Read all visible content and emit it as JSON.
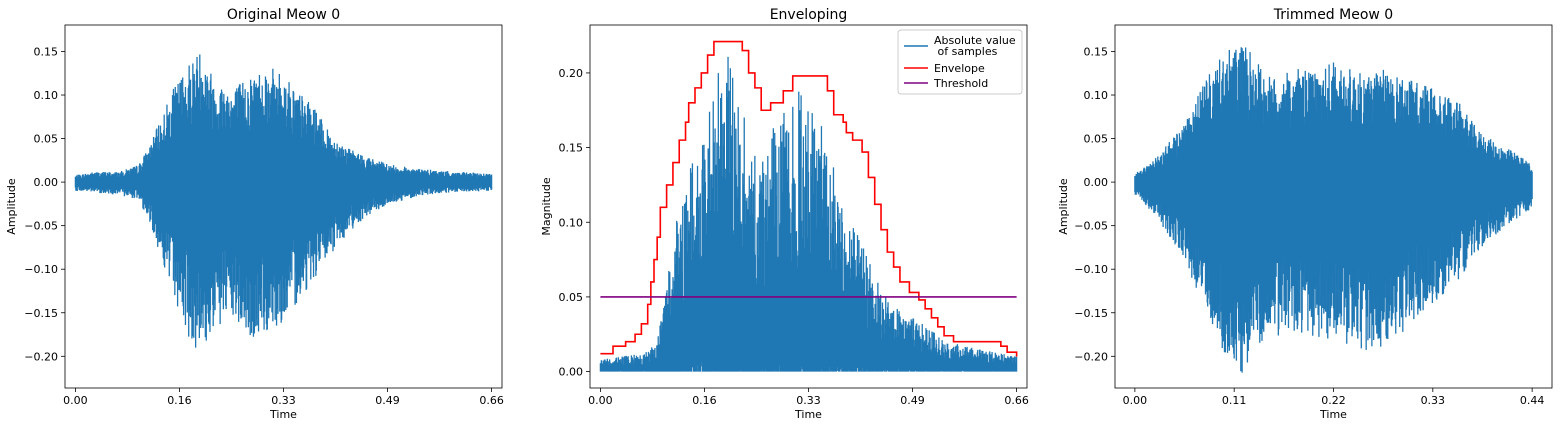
{
  "chart_data": [
    {
      "type": "line",
      "title": "Original Meow 0",
      "xlabel": "Time",
      "ylabel": "Amplitude",
      "xlim": [
        -0.0165,
        0.6765
      ],
      "ylim": [
        -0.2364,
        0.1804
      ],
      "xticks": [
        {
          "v": 0.0,
          "label": "0.00"
        },
        {
          "v": 0.165,
          "label": "0.16"
        },
        {
          "v": 0.33,
          "label": "0.33"
        },
        {
          "v": 0.495,
          "label": "0.49"
        },
        {
          "v": 0.66,
          "label": "0.66"
        }
      ],
      "yticks": [
        {
          "v": 0.15,
          "label": "0.15"
        },
        {
          "v": 0.1,
          "label": "0.10"
        },
        {
          "v": 0.05,
          "label": "0.05"
        },
        {
          "v": 0.0,
          "label": "0.00"
        },
        {
          "v": -0.05,
          "label": "−0.05"
        },
        {
          "v": -0.1,
          "label": "−0.10"
        },
        {
          "v": -0.15,
          "label": "−0.15"
        },
        {
          "v": -0.2,
          "label": "−0.20"
        }
      ],
      "series": [
        {
          "color": "#1f77b4",
          "envelope": {
            "t": [
              0.0,
              0.03,
              0.07,
              0.1,
              0.12,
              0.15,
              0.18,
              0.2,
              0.22,
              0.25,
              0.28,
              0.3,
              0.33,
              0.36,
              0.38,
              0.4,
              0.43,
              0.46,
              0.5,
              0.55,
              0.6,
              0.66
            ],
            "upper": [
              0.008,
              0.012,
              0.012,
              0.02,
              0.045,
              0.1,
              0.14,
              0.155,
              0.12,
              0.11,
              0.125,
              0.135,
              0.125,
              0.1,
              0.085,
              0.06,
              0.04,
              0.03,
              0.02,
              0.015,
              0.012,
              0.01
            ],
            "lower": [
              -0.01,
              -0.012,
              -0.015,
              -0.02,
              -0.05,
              -0.12,
              -0.18,
              -0.2,
              -0.17,
              -0.16,
              -0.185,
              -0.175,
              -0.16,
              -0.13,
              -0.11,
              -0.09,
              -0.06,
              -0.04,
              -0.025,
              -0.015,
              -0.012,
              -0.01
            ]
          }
        }
      ]
    },
    {
      "type": "line",
      "title": "Enveloping",
      "xlabel": "Time",
      "ylabel": "Magnitude",
      "xlim": [
        -0.0165,
        0.6765
      ],
      "ylim": [
        -0.011,
        0.2321
      ],
      "xticks": [
        {
          "v": 0.0,
          "label": "0.00"
        },
        {
          "v": 0.165,
          "label": "0.16"
        },
        {
          "v": 0.33,
          "label": "0.33"
        },
        {
          "v": 0.495,
          "label": "0.49"
        },
        {
          "v": 0.66,
          "label": "0.66"
        }
      ],
      "yticks": [
        {
          "v": 0.2,
          "label": "0.20"
        },
        {
          "v": 0.15,
          "label": "0.15"
        },
        {
          "v": 0.1,
          "label": "0.10"
        },
        {
          "v": 0.05,
          "label": "0.05"
        },
        {
          "v": 0.0,
          "label": "0.00"
        }
      ],
      "legend": {
        "position": "top-right",
        "entries": [
          {
            "label": "Absolute value",
            "label2": " of samples",
            "color": "#1f77b4"
          },
          {
            "label": "Envelope",
            "color": "#ff0000"
          },
          {
            "label": "Threshold",
            "color": "#800080"
          }
        ]
      },
      "series": [
        {
          "name": "Absolute value of samples",
          "color": "#1f77b4",
          "envelope": {
            "t": [
              0.0,
              0.03,
              0.07,
              0.09,
              0.1,
              0.12,
              0.15,
              0.17,
              0.19,
              0.2,
              0.22,
              0.24,
              0.26,
              0.28,
              0.3,
              0.31,
              0.33,
              0.35,
              0.38,
              0.4,
              0.43,
              0.46,
              0.5,
              0.55,
              0.6,
              0.66
            ],
            "upper": [
              0.008,
              0.01,
              0.012,
              0.02,
              0.045,
              0.1,
              0.15,
              0.175,
              0.21,
              0.215,
              0.18,
              0.16,
              0.15,
              0.17,
              0.18,
              0.19,
              0.185,
              0.165,
              0.13,
              0.1,
              0.07,
              0.045,
              0.035,
              0.02,
              0.015,
              0.01
            ]
          }
        },
        {
          "name": "Envelope",
          "color": "#ff0000",
          "points": [
            [
              0.0,
              0.012
            ],
            [
              0.02,
              0.017
            ],
            [
              0.04,
              0.02
            ],
            [
              0.055,
              0.025
            ],
            [
              0.065,
              0.032
            ],
            [
              0.075,
              0.045
            ],
            [
              0.08,
              0.06
            ],
            [
              0.085,
              0.075
            ],
            [
              0.09,
              0.09
            ],
            [
              0.095,
              0.11
            ],
            [
              0.105,
              0.125
            ],
            [
              0.115,
              0.14
            ],
            [
              0.125,
              0.155
            ],
            [
              0.135,
              0.167
            ],
            [
              0.14,
              0.18
            ],
            [
              0.15,
              0.19
            ],
            [
              0.16,
              0.2
            ],
            [
              0.17,
              0.212
            ],
            [
              0.18,
              0.221
            ],
            [
              0.215,
              0.221
            ],
            [
              0.225,
              0.215
            ],
            [
              0.235,
              0.2
            ],
            [
              0.245,
              0.19
            ],
            [
              0.255,
              0.175
            ],
            [
              0.27,
              0.18
            ],
            [
              0.29,
              0.188
            ],
            [
              0.305,
              0.198
            ],
            [
              0.355,
              0.198
            ],
            [
              0.36,
              0.188
            ],
            [
              0.37,
              0.172
            ],
            [
              0.385,
              0.167
            ],
            [
              0.39,
              0.16
            ],
            [
              0.4,
              0.155
            ],
            [
              0.415,
              0.147
            ],
            [
              0.425,
              0.13
            ],
            [
              0.435,
              0.112
            ],
            [
              0.445,
              0.095
            ],
            [
              0.455,
              0.08
            ],
            [
              0.465,
              0.07
            ],
            [
              0.475,
              0.06
            ],
            [
              0.49,
              0.053
            ],
            [
              0.505,
              0.048
            ],
            [
              0.515,
              0.042
            ],
            [
              0.525,
              0.036
            ],
            [
              0.535,
              0.03
            ],
            [
              0.545,
              0.024
            ],
            [
              0.56,
              0.02
            ],
            [
              0.62,
              0.02
            ],
            [
              0.635,
              0.017
            ],
            [
              0.645,
              0.013
            ],
            [
              0.66,
              0.01
            ]
          ]
        },
        {
          "name": "Threshold",
          "color": "#800080",
          "points": [
            [
              0.0,
              0.05
            ],
            [
              0.66,
              0.05
            ]
          ]
        }
      ]
    },
    {
      "type": "line",
      "title": "Trimmed Meow 0",
      "xlabel": "Time",
      "ylabel": "Amplitude",
      "xlim": [
        -0.022,
        0.462
      ],
      "ylim": [
        -0.2364,
        0.1804
      ],
      "xticks": [
        {
          "v": 0.0,
          "label": "0.00"
        },
        {
          "v": 0.11,
          "label": "0.11"
        },
        {
          "v": 0.22,
          "label": "0.22"
        },
        {
          "v": 0.33,
          "label": "0.33"
        },
        {
          "v": 0.44,
          "label": "0.44"
        }
      ],
      "yticks": [
        {
          "v": 0.15,
          "label": "0.15"
        },
        {
          "v": 0.1,
          "label": "0.10"
        },
        {
          "v": 0.05,
          "label": "0.05"
        },
        {
          "v": 0.0,
          "label": "0.00"
        },
        {
          "v": -0.05,
          "label": "−0.05"
        },
        {
          "v": -0.1,
          "label": "−0.10"
        },
        {
          "v": -0.15,
          "label": "−0.15"
        },
        {
          "v": -0.2,
          "label": "−0.20"
        }
      ],
      "series": [
        {
          "color": "#1f77b4",
          "envelope": {
            "t": [
              0.0,
              0.02,
              0.05,
              0.08,
              0.1,
              0.12,
              0.15,
              0.18,
              0.2,
              0.22,
              0.25,
              0.28,
              0.3,
              0.33,
              0.36,
              0.38,
              0.4,
              0.42,
              0.44
            ],
            "upper": [
              0.01,
              0.025,
              0.06,
              0.12,
              0.15,
              0.16,
              0.12,
              0.13,
              0.125,
              0.14,
              0.125,
              0.13,
              0.12,
              0.11,
              0.09,
              0.06,
              0.045,
              0.035,
              0.02
            ],
            "lower": [
              -0.015,
              -0.035,
              -0.08,
              -0.15,
              -0.2,
              -0.22,
              -0.18,
              -0.17,
              -0.19,
              -0.175,
              -0.2,
              -0.19,
              -0.17,
              -0.14,
              -0.11,
              -0.08,
              -0.06,
              -0.045,
              -0.03
            ]
          }
        }
      ]
    }
  ]
}
